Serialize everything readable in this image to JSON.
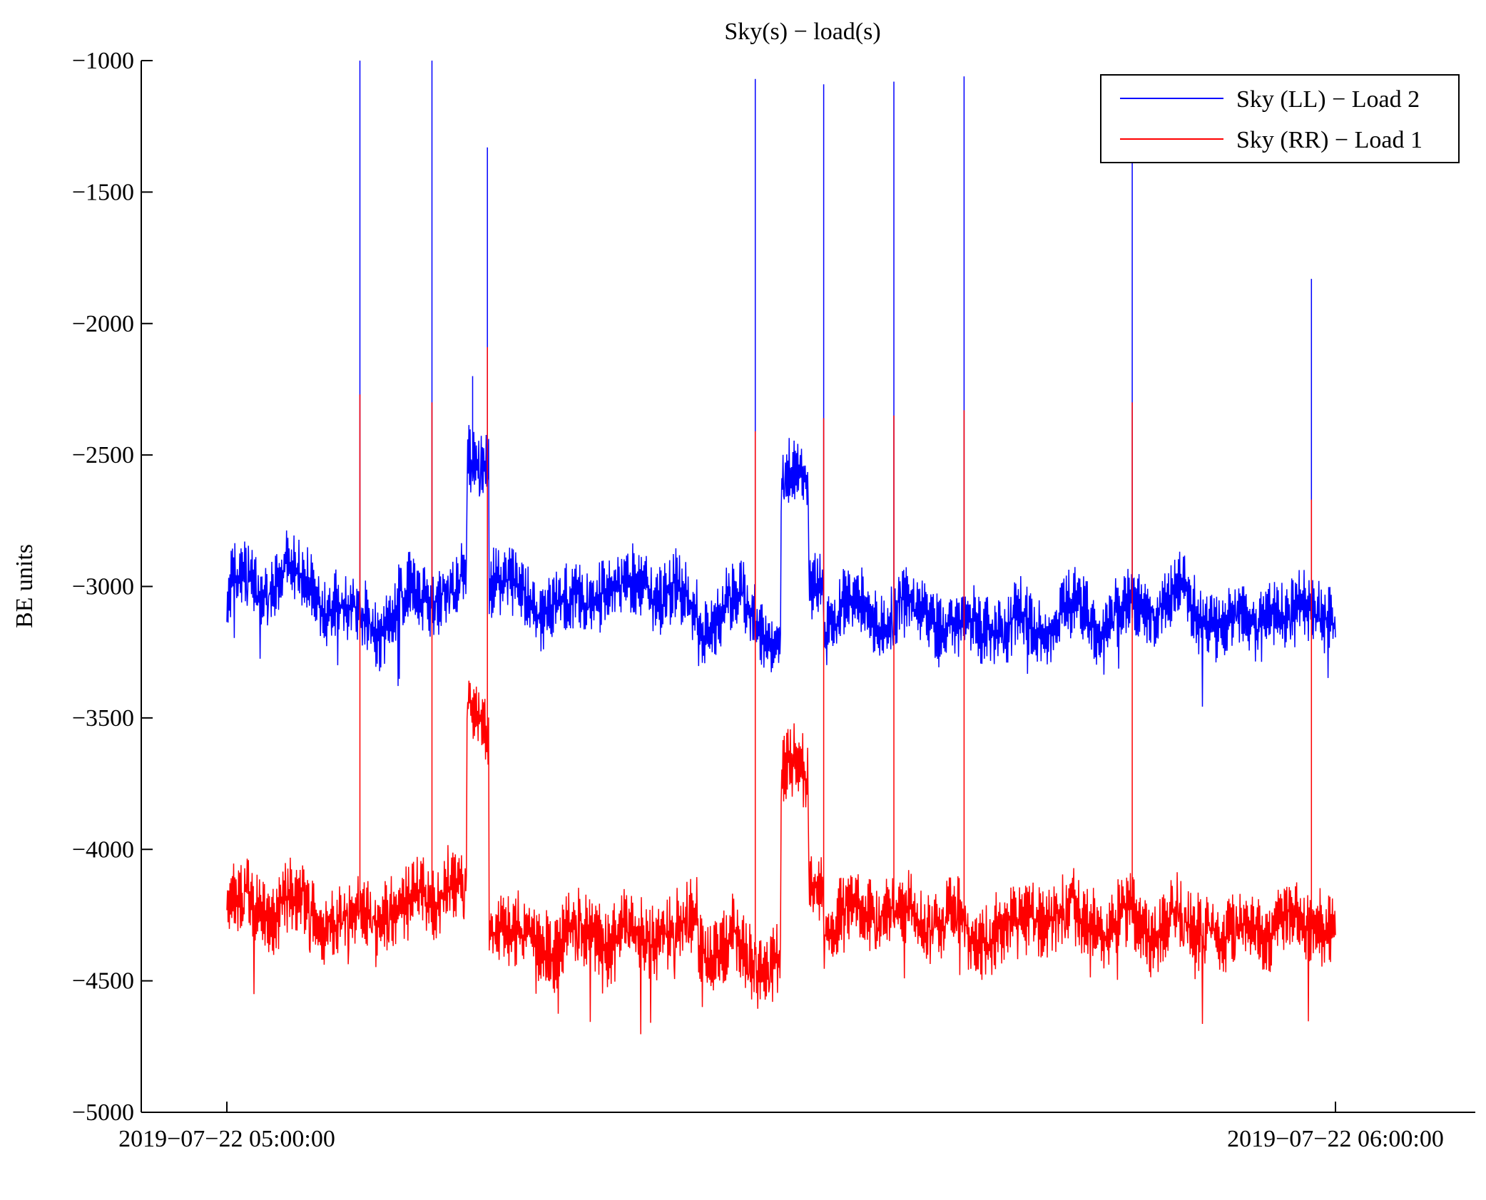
{
  "chart_data": {
    "type": "line",
    "title": "Sky(s) − load(s)",
    "xlabel": "",
    "ylabel": "BE units",
    "xlim": [
      "2019−07−22 04:55:30",
      "2019−07−22 06:06:00"
    ],
    "ylim": [
      -5000,
      -1000
    ],
    "yticks": [
      -1000,
      -1500,
      -2000,
      -2500,
      -3000,
      -3500,
      -4000,
      -4500,
      -5000
    ],
    "ytick_labels": [
      "−1000",
      "−1500",
      "−2000",
      "−2500",
      "−3000",
      "−3500",
      "−4000",
      "−4500",
      "−5000"
    ],
    "xticks": [
      "2019−07−22 05:00:00",
      "2019−07−22 06:00:00"
    ],
    "grid": false,
    "legend_position": "top-right",
    "series": [
      {
        "name": "Sky (LL) − Load 2",
        "color": "#0000ff",
        "baseline": -3050,
        "noise_amplitude": 220,
        "spikes": [
          {
            "t_min": 7.2,
            "y": -1000
          },
          {
            "t_min": 11.1,
            "y": -1000
          },
          {
            "t_min": 14.1,
            "y": -1330
          },
          {
            "t_min": 13.3,
            "y": -2200
          },
          {
            "t_min": 28.6,
            "y": -1070
          },
          {
            "t_min": 32.3,
            "y": -1090
          },
          {
            "t_min": 36.1,
            "y": -1080
          },
          {
            "t_min": 39.9,
            "y": -1060
          },
          {
            "t_min": 49.0,
            "y": -1320
          },
          {
            "t_min": 58.7,
            "y": -1830
          }
        ],
        "segments": [
          {
            "from_min": 0,
            "to_min": 13,
            "y": -3030
          },
          {
            "from_min": 13,
            "to_min": 14.2,
            "y": -2600
          },
          {
            "from_min": 14.2,
            "to_min": 25.5,
            "y": -3060
          },
          {
            "from_min": 25.5,
            "to_min": 30,
            "y": -3150
          },
          {
            "from_min": 30,
            "to_min": 31.5,
            "y": -2550
          },
          {
            "from_min": 31.5,
            "to_min": 32.3,
            "y": -2950
          },
          {
            "from_min": 32.3,
            "to_min": 60,
            "y": -3120
          }
        ]
      },
      {
        "name": "Sky (RR) − Load 1",
        "color": "#ff0000",
        "baseline": -4250,
        "noise_amplitude": 240,
        "spikes": [
          {
            "t_min": 7.2,
            "y": -2270
          },
          {
            "t_min": 11.1,
            "y": -2300
          },
          {
            "t_min": 14.1,
            "y": -2090
          },
          {
            "t_min": 28.6,
            "y": -2410
          },
          {
            "t_min": 32.3,
            "y": -2360
          },
          {
            "t_min": 36.1,
            "y": -2350
          },
          {
            "t_min": 39.9,
            "y": -2330
          },
          {
            "t_min": 49.0,
            "y": -2300
          },
          {
            "t_min": 58.7,
            "y": -2670
          }
        ],
        "segments": [
          {
            "from_min": 0,
            "to_min": 13,
            "y": -4230
          },
          {
            "from_min": 13,
            "to_min": 14.2,
            "y": -3550
          },
          {
            "from_min": 14.2,
            "to_min": 25.5,
            "y": -4280
          },
          {
            "from_min": 25.5,
            "to_min": 30,
            "y": -4400
          },
          {
            "from_min": 30,
            "to_min": 31.5,
            "y": -3700
          },
          {
            "from_min": 31.5,
            "to_min": 32.3,
            "y": -4050
          },
          {
            "from_min": 32.3,
            "to_min": 60,
            "y": -4280
          }
        ]
      }
    ]
  }
}
